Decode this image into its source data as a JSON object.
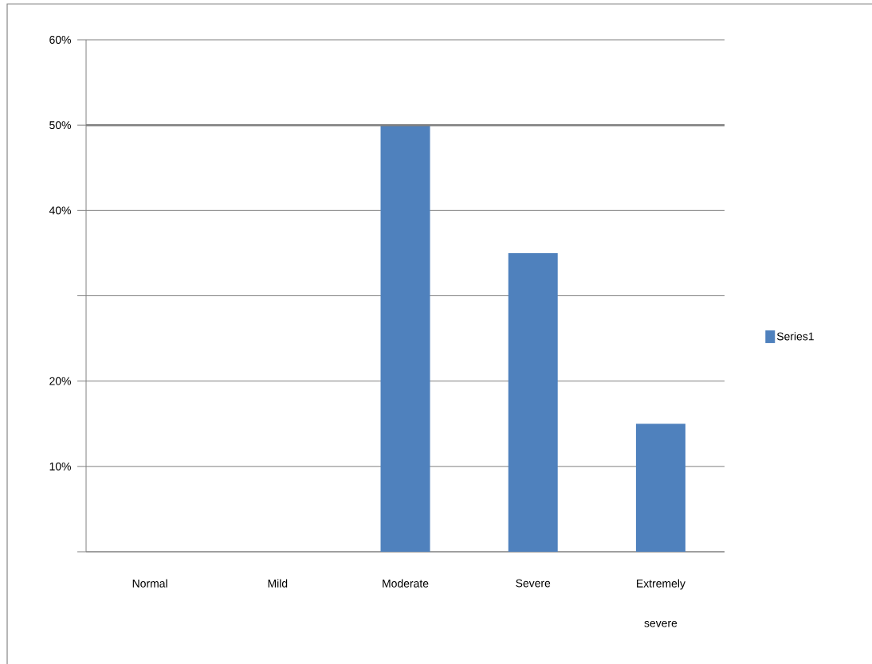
{
  "chart_data": {
    "type": "bar",
    "categories": [
      "Normal",
      "Mild",
      "Moderate",
      "Severe",
      "Extremely severe"
    ],
    "series": [
      {
        "name": "Series1",
        "color": "#4f81bd",
        "values": [
          0,
          0,
          50,
          35,
          15
        ]
      }
    ],
    "ylim": [
      0,
      60
    ],
    "yticks": [
      {
        "value": 0,
        "label": null
      },
      {
        "value": 10,
        "label": "10%"
      },
      {
        "value": 20,
        "label": "20%"
      },
      {
        "value": 30,
        "label": null
      },
      {
        "value": 40,
        "label": "40%"
      },
      {
        "value": 50,
        "label": "50%"
      },
      {
        "value": 60,
        "label": "60%"
      }
    ],
    "grid": "y",
    "legend": "right",
    "ref_lines": [
      {
        "axis": "y",
        "value": 50,
        "color": "#808080"
      }
    ]
  }
}
